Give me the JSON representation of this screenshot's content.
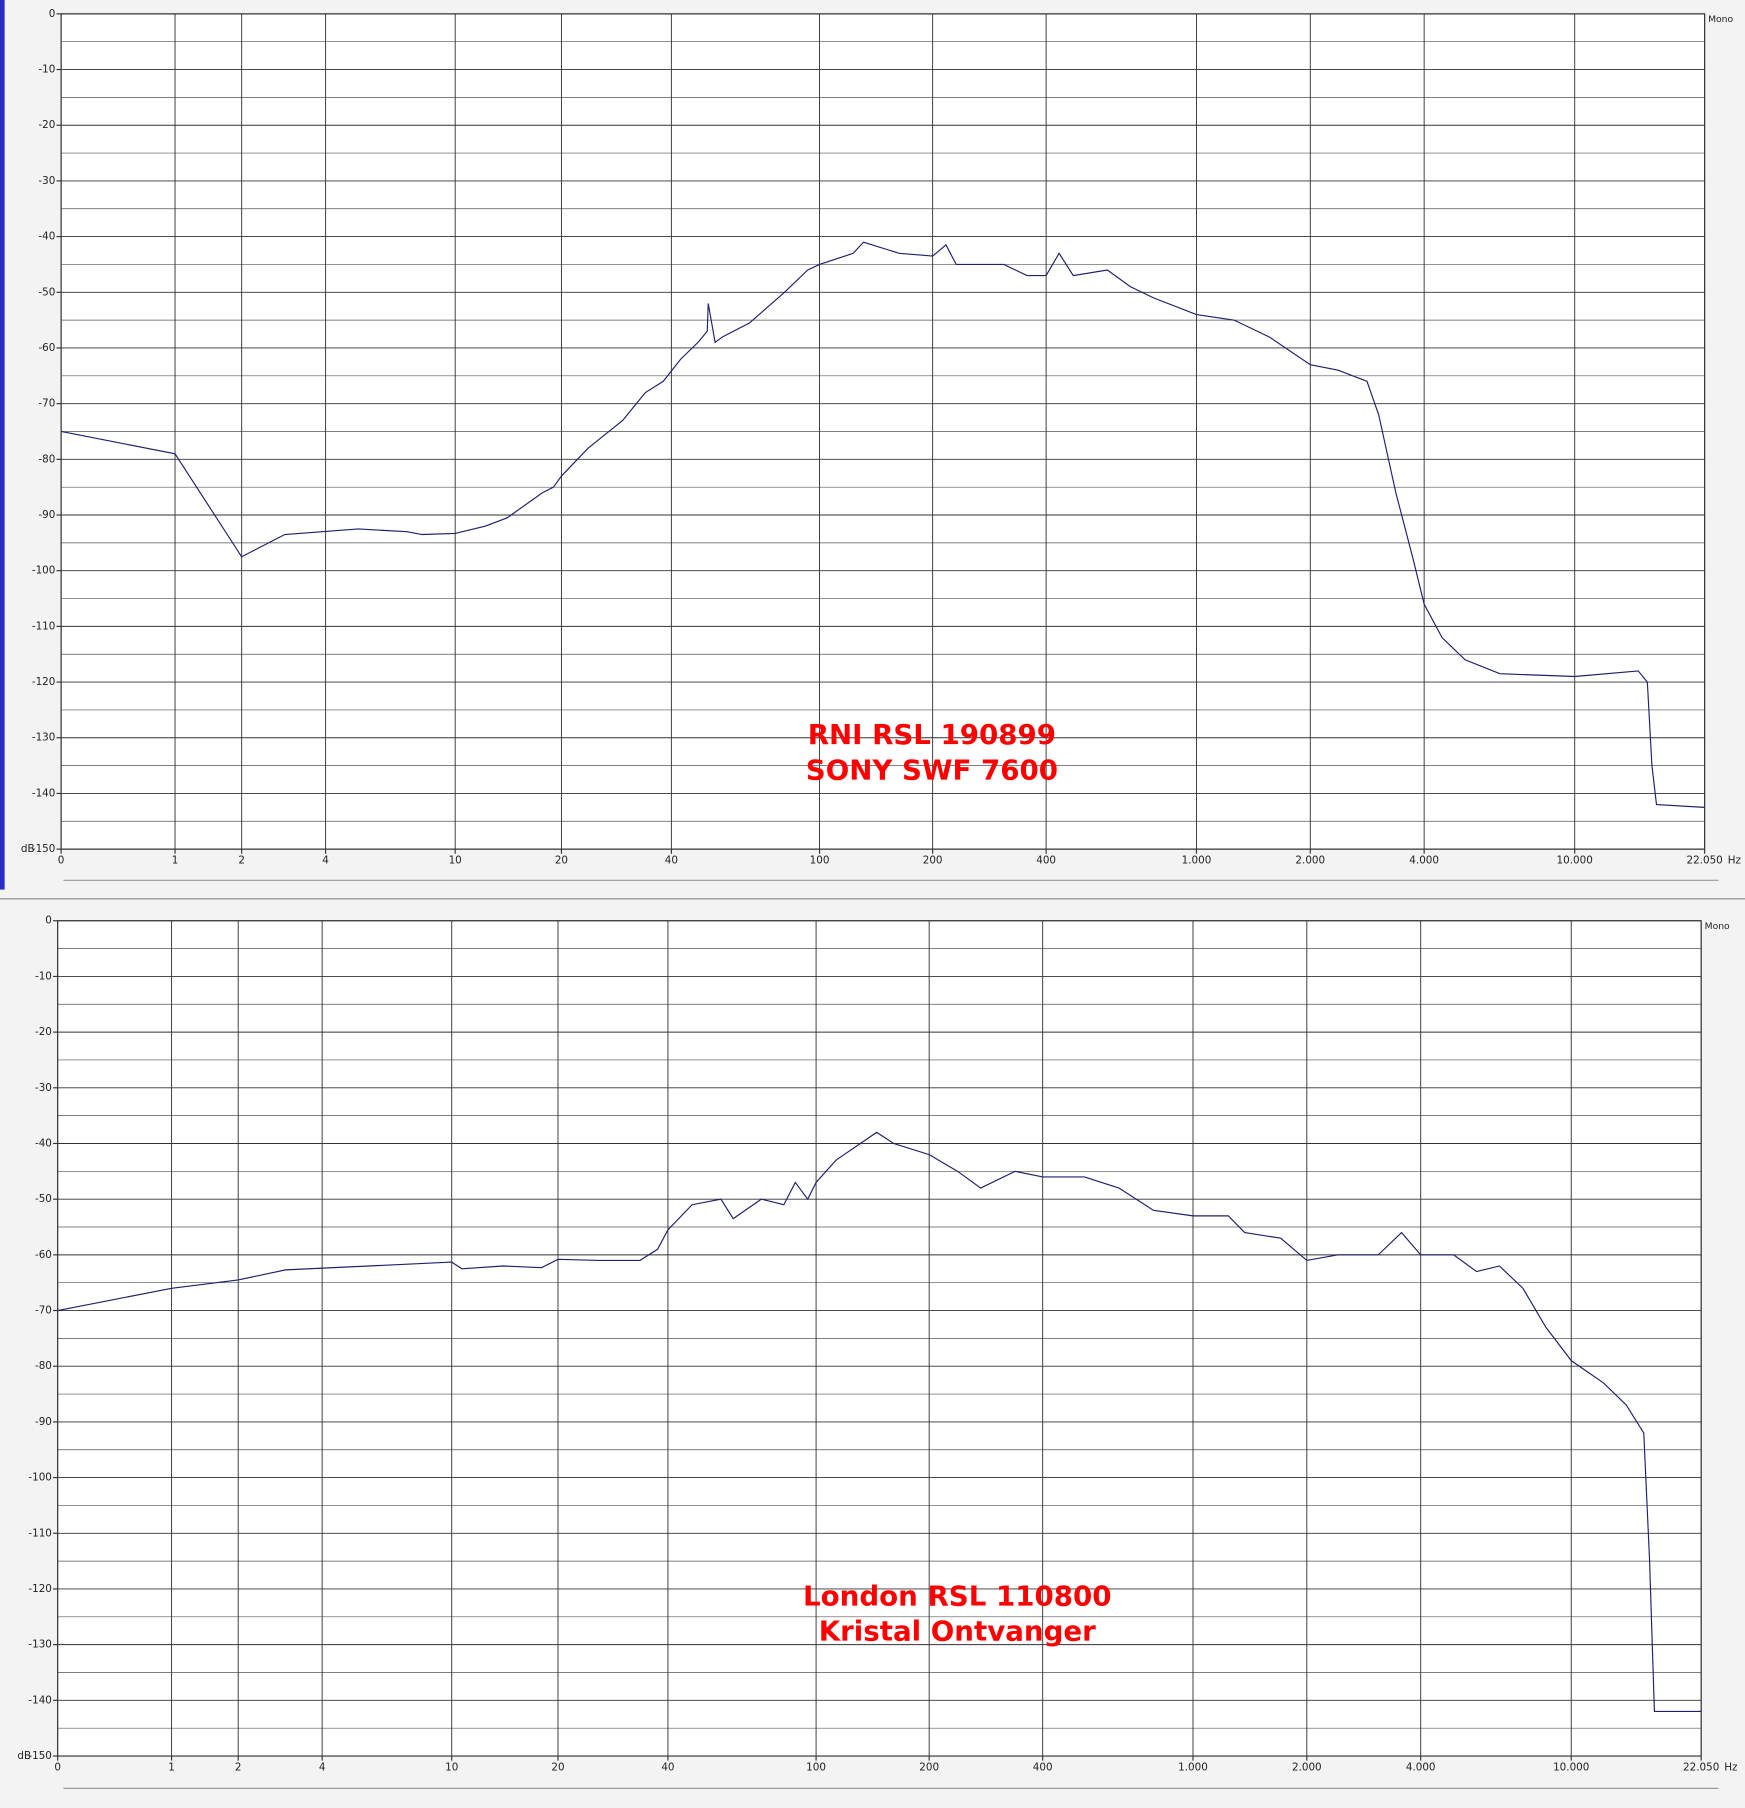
{
  "chart_data": [
    {
      "type": "line",
      "channel": "Mono",
      "x_unit": "Hz",
      "y_unit": "dB",
      "annotation": [
        "RNI RSL 190899",
        "SONY SWF 7600"
      ],
      "x_scale": "log(x+1)",
      "xlim": [
        0,
        22050
      ],
      "ylim": [
        -150,
        0
      ],
      "grid": true,
      "color": "#1f1f6e",
      "xticks": [
        0,
        1,
        2,
        4,
        10,
        20,
        40,
        100,
        200,
        400,
        {
          "value": 1000,
          "label": "1.000"
        },
        {
          "value": 2000,
          "label": "2.000"
        },
        {
          "value": 4000,
          "label": "4.000"
        },
        {
          "value": 10000,
          "label": "10.000"
        },
        {
          "value": 22050,
          "label": "22.050"
        }
      ],
      "yticks": [
        0,
        -10,
        -20,
        -30,
        -40,
        -50,
        -60,
        -70,
        -80,
        -90,
        -100,
        -110,
        -120,
        -130,
        -140,
        -150
      ],
      "yminor": [
        -5,
        -15,
        -25,
        -35,
        -45,
        -55,
        -65,
        -75,
        -85,
        -95,
        -105,
        -115,
        -125,
        -135,
        -145
      ],
      "x": [
        0,
        1,
        2,
        2.9,
        5.1,
        7.2,
        8,
        10,
        12.2,
        14.1,
        17.7,
        19,
        20,
        23.7,
        29.5,
        34,
        38,
        42.4,
        47.2,
        50,
        50.3,
        52.5,
        55,
        65,
        80.6,
        93,
        100,
        123,
        131,
        163,
        200,
        217,
        231,
        309,
        356,
        400,
        433,
        472,
        581,
        669,
        770,
        1000,
        1258,
        1556,
        2000,
        2370,
        2825,
        3033,
        3367,
        3743,
        4000,
        4460,
        5130,
        6340,
        10000,
        14720,
        15560,
        16000,
        16450,
        22050
      ],
      "values": [
        -75,
        -79,
        -97.5,
        -93.5,
        -92.5,
        -93,
        -93.5,
        -93.3,
        -92,
        -90.5,
        -86,
        -85,
        -83,
        -78,
        -73,
        -68,
        -66,
        -62,
        -59,
        -57,
        -52,
        -59,
        -58,
        -55.5,
        -50,
        -46,
        -45,
        -43,
        -41,
        -43,
        -43.5,
        -41.5,
        -45,
        -45,
        -47,
        -47,
        -43,
        -47,
        -46,
        -49,
        -51,
        -54,
        -55,
        -58,
        -63,
        -64,
        -66,
        -72,
        -86,
        -98,
        -106,
        -112,
        -116,
        -118.5,
        -119,
        -118,
        -120,
        -135,
        -142,
        -142.5
      ]
    },
    {
      "type": "line",
      "channel": "Mono",
      "x_unit": "Hz",
      "y_unit": "dB",
      "annotation": [
        "London RSL 110800",
        "Kristal Ontvanger"
      ],
      "x_scale": "log(x+1)",
      "xlim": [
        0,
        22050
      ],
      "ylim": [
        -150,
        0
      ],
      "grid": true,
      "color": "#1f1f6e",
      "xticks": [
        0,
        1,
        2,
        4,
        10,
        20,
        40,
        100,
        200,
        400,
        {
          "value": 1000,
          "label": "1.000"
        },
        {
          "value": 2000,
          "label": "2.000"
        },
        {
          "value": 4000,
          "label": "4.000"
        },
        {
          "value": 10000,
          "label": "10.000"
        },
        {
          "value": 22050,
          "label": "22.050"
        }
      ],
      "yticks": [
        0,
        -10,
        -20,
        -30,
        -40,
        -50,
        -60,
        -70,
        -80,
        -90,
        -100,
        -110,
        -120,
        -130,
        -140,
        -150
      ],
      "yminor": [
        -5,
        -15,
        -25,
        -35,
        -45,
        -55,
        -65,
        -75,
        -85,
        -95,
        -105,
        -115,
        -125,
        -135,
        -145
      ],
      "x": [
        0,
        1,
        2,
        3,
        10,
        10.7,
        14,
        18,
        20,
        26,
        33.6,
        37.5,
        40,
        46.5,
        55.6,
        60,
        71.4,
        82,
        88,
        95,
        100,
        113,
        145,
        161,
        200,
        238,
        274,
        338,
        400,
        516,
        637,
        786,
        1000,
        1240,
        1370,
        1706,
        2000,
        2420,
        3090,
        3560,
        4000,
        4890,
        5620,
        6460,
        7450,
        8570,
        10000,
        12170,
        13990,
        15550,
        16110,
        16590,
        22050
      ],
      "values": [
        -70,
        -66,
        -64.5,
        -62.7,
        -61.3,
        -62.5,
        -62,
        -62.3,
        -60.8,
        -61,
        -61,
        -59,
        -55.5,
        -51,
        -50,
        -53.5,
        -50,
        -51,
        -47,
        -50,
        -47,
        -43,
        -38,
        -40,
        -42,
        -45,
        -48,
        -45,
        -46,
        -46,
        -48,
        -52,
        -53,
        -53,
        -56,
        -57,
        -61,
        -60,
        -60,
        -56,
        -60,
        -60,
        -63,
        -62,
        -66,
        -73,
        -79,
        -83,
        -87,
        -92,
        -115,
        -142,
        -142
      ]
    }
  ]
}
